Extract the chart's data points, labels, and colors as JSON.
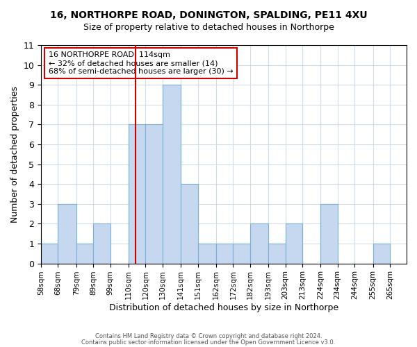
{
  "title": "16, NORTHORPE ROAD, DONINGTON, SPALDING, PE11 4XU",
  "subtitle": "Size of property relative to detached houses in Northorpe",
  "xlabel": "Distribution of detached houses by size in Northorpe",
  "ylabel": "Number of detached properties",
  "bin_labels": [
    "58sqm",
    "68sqm",
    "79sqm",
    "89sqm",
    "99sqm",
    "110sqm",
    "120sqm",
    "130sqm",
    "141sqm",
    "151sqm",
    "162sqm",
    "172sqm",
    "182sqm",
    "193sqm",
    "203sqm",
    "213sqm",
    "224sqm",
    "234sqm",
    "244sqm",
    "255sqm",
    "265sqm"
  ],
  "bin_edges": [
    58,
    68,
    79,
    89,
    99,
    110,
    120,
    130,
    141,
    151,
    162,
    172,
    182,
    193,
    203,
    213,
    224,
    234,
    244,
    255,
    265,
    275
  ],
  "bar_heights": [
    1,
    3,
    1,
    2,
    0,
    7,
    7,
    9,
    4,
    1,
    1,
    1,
    2,
    1,
    2,
    0,
    3,
    0,
    0,
    1,
    0
  ],
  "bar_color": "#c5d8f0",
  "bar_edgecolor": "#7aafd4",
  "property_line_x": 114,
  "property_line_color": "#cc0000",
  "annotation_title": "16 NORTHORPE ROAD: 114sqm",
  "annotation_line2": "← 32% of detached houses are smaller (14)",
  "annotation_line3": "68% of semi-detached houses are larger (30) →",
  "annotation_box_edgecolor": "#cc0000",
  "ylim": [
    0,
    11
  ],
  "yticks": [
    0,
    1,
    2,
    3,
    4,
    5,
    6,
    7,
    8,
    9,
    10,
    11
  ],
  "footer1": "Contains HM Land Registry data © Crown copyright and database right 2024.",
  "footer2": "Contains public sector information licensed under the Open Government Licence v3.0.",
  "background_color": "#ffffff",
  "grid_color": "#d0dce8"
}
